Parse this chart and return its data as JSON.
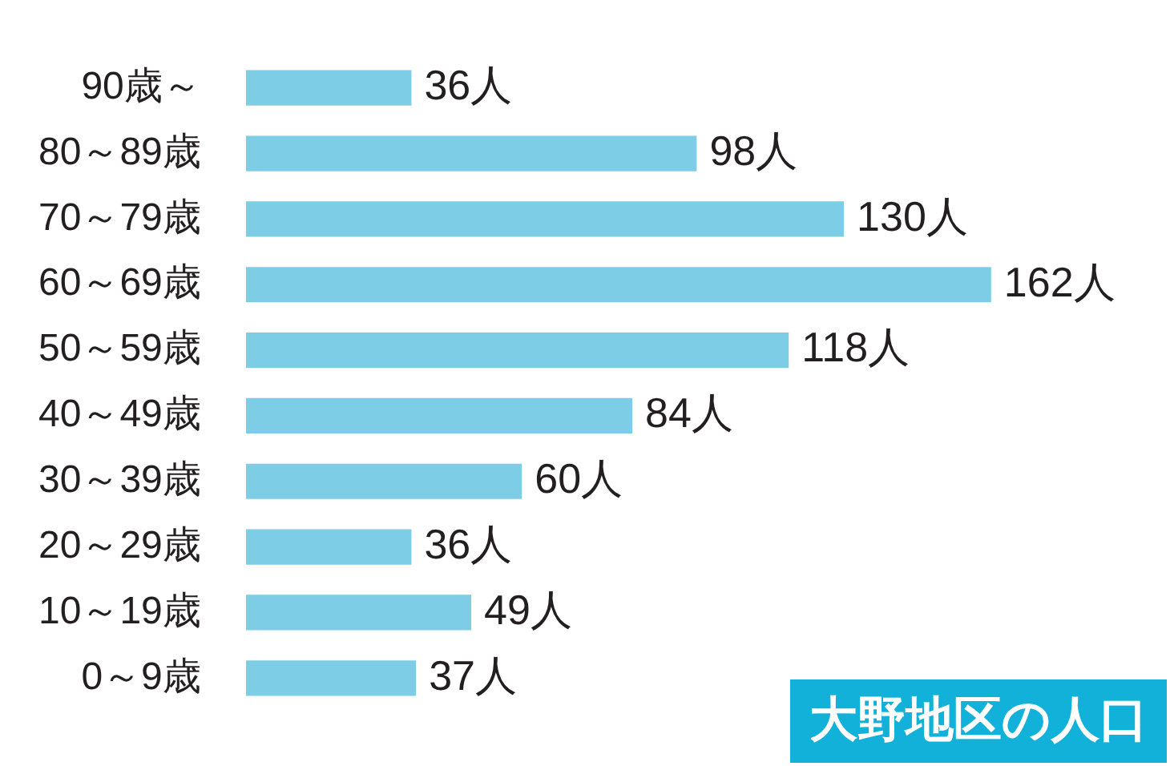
{
  "chart_data": {
    "type": "bar",
    "orientation": "horizontal",
    "title": "大野地区の人口",
    "categories": [
      "90歳～",
      "80～89歳",
      "70～79歳",
      "60～69歳",
      "50～59歳",
      "40～49歳",
      "30～39歳",
      "20～29歳",
      "10～19歳",
      "0～9歳"
    ],
    "values": [
      36,
      98,
      130,
      162,
      118,
      84,
      60,
      36,
      49,
      37
    ],
    "value_labels": [
      "36人",
      "98人",
      "130人",
      "162人",
      "118人",
      "84人",
      "60人",
      "36人",
      "49人",
      "37人"
    ],
    "color": "#7ecde6",
    "grid": false,
    "legend": false
  }
}
